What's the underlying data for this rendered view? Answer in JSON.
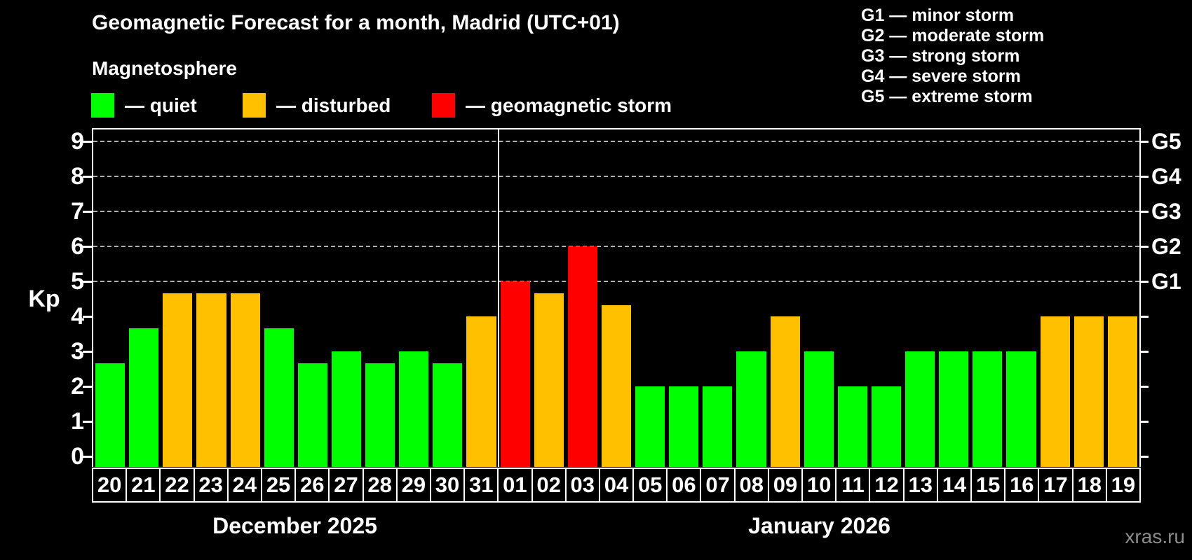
{
  "title": "Geomagnetic Forecast for a month, Madrid (UTC+01)",
  "subtitle": "Magnetosphere",
  "legend": [
    {
      "state": "quiet",
      "label": "— quiet"
    },
    {
      "state": "disturbed",
      "label": "— disturbed"
    },
    {
      "state": "storm",
      "label": "— geomagnetic storm"
    }
  ],
  "g_scale_legend": [
    "G1 — minor storm",
    "G2 — moderate storm",
    "G3 — strong storm",
    "G4 — severe storm",
    "G5 — extreme storm"
  ],
  "colors": {
    "quiet": "#00ff00",
    "disturbed": "#ffc000",
    "storm": "#ff0000",
    "gridline": "#b0b0b0",
    "watermark_text": "#8c8c8c"
  },
  "y_axis": {
    "label": "Kp",
    "ticks": [
      0,
      1,
      2,
      3,
      4,
      5,
      6,
      7,
      8,
      9
    ]
  },
  "right_axis": [
    {
      "kp": 5,
      "label": "G1"
    },
    {
      "kp": 6,
      "label": "G2"
    },
    {
      "kp": 7,
      "label": "G3"
    },
    {
      "kp": 8,
      "label": "G4"
    },
    {
      "kp": 9,
      "label": "G5"
    }
  ],
  "months": [
    {
      "label": "December 2025",
      "days": 12
    },
    {
      "label": "January 2026",
      "days": 19
    }
  ],
  "watermark": "xras.ru",
  "chart_data": {
    "type": "bar",
    "title": "Geomagnetic Forecast for a month, Madrid (UTC+01)",
    "xlabel": "",
    "ylabel": "Kp",
    "ylim": [
      0,
      9
    ],
    "gridlines_kp": [
      5,
      6,
      7,
      8,
      9
    ],
    "legend_position": "top-left",
    "categories": [
      "20",
      "21",
      "22",
      "23",
      "24",
      "25",
      "26",
      "27",
      "28",
      "29",
      "30",
      "31",
      "01",
      "02",
      "03",
      "04",
      "05",
      "06",
      "07",
      "08",
      "09",
      "10",
      "11",
      "12",
      "13",
      "14",
      "15",
      "16",
      "17",
      "18",
      "19"
    ],
    "values": [
      2.67,
      3.67,
      4.67,
      4.67,
      4.67,
      3.67,
      2.67,
      3,
      2.67,
      3,
      2.67,
      4,
      5,
      4.67,
      6,
      4.33,
      2,
      2,
      2,
      3,
      4,
      3,
      2,
      2,
      3,
      3,
      3,
      3,
      4,
      4,
      4
    ],
    "states": [
      "quiet",
      "quiet",
      "disturbed",
      "disturbed",
      "disturbed",
      "quiet",
      "quiet",
      "quiet",
      "quiet",
      "quiet",
      "quiet",
      "disturbed",
      "storm",
      "disturbed",
      "storm",
      "disturbed",
      "quiet",
      "quiet",
      "quiet",
      "quiet",
      "disturbed",
      "quiet",
      "quiet",
      "quiet",
      "quiet",
      "quiet",
      "quiet",
      "quiet",
      "disturbed",
      "disturbed",
      "disturbed"
    ]
  }
}
